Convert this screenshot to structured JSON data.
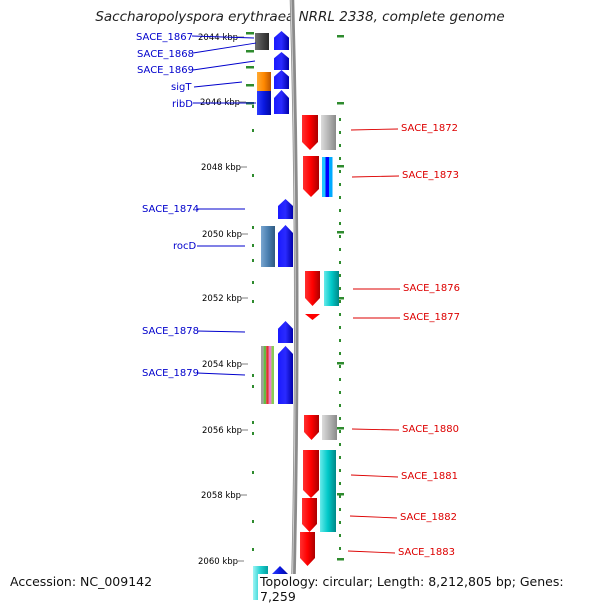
{
  "title": "Saccharopolyspora erythraea NRRL 2338, complete genome",
  "footer": {
    "accession": "Accession: NC_009142",
    "topology": "Topology: circular; Length: 8,212,805 bp; Genes: 7,259"
  },
  "colors": {
    "left_label": "#0000cc",
    "right_label": "#dd0000",
    "tick": "#2e8b2e",
    "backbone": "#8a8a8a"
  },
  "scale_labels": [
    "2044 kbp",
    "2046 kbp",
    "2048 kbp",
    "2050 kbp",
    "2052 kbp",
    "2054 kbp",
    "2056 kbp",
    "2058 kbp",
    "2060 kbp"
  ],
  "genes_left": [
    {
      "name": "SACE_1867"
    },
    {
      "name": "SACE_1868"
    },
    {
      "name": "SACE_1869"
    },
    {
      "name": "sigT"
    },
    {
      "name": "ribD"
    },
    {
      "name": "SACE_1874"
    },
    {
      "name": "rocD"
    },
    {
      "name": "SACE_1878"
    },
    {
      "name": "SACE_1879"
    }
  ],
  "genes_right": [
    {
      "name": "SACE_1872"
    },
    {
      "name": "SACE_1873"
    },
    {
      "name": "SACE_1876"
    },
    {
      "name": "SACE_1877"
    },
    {
      "name": "SACE_1880"
    },
    {
      "name": "SACE_1881"
    },
    {
      "name": "SACE_1882"
    },
    {
      "name": "SACE_1883"
    }
  ]
}
